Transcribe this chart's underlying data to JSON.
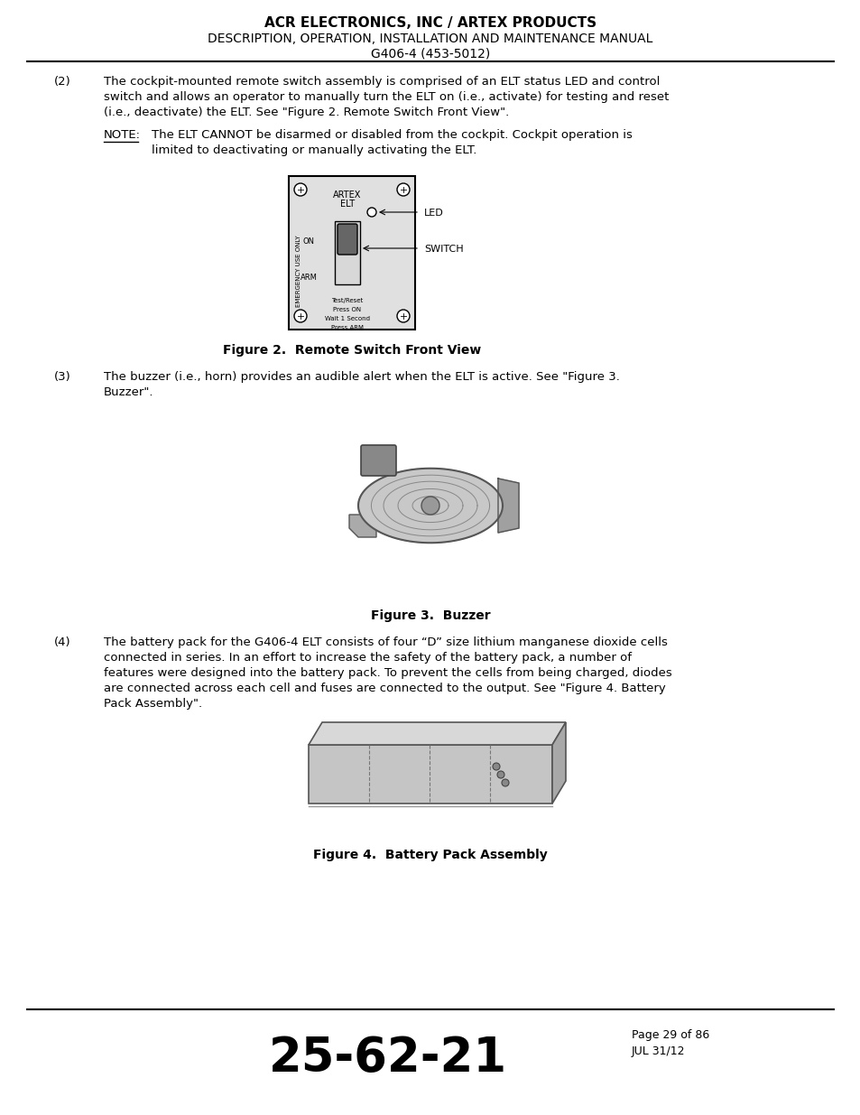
{
  "header_line1": "ACR ELECTRONICS, INC / ARTEX PRODUCTS",
  "header_line2": "DESCRIPTION, OPERATION, INSTALLATION AND MAINTENANCE MANUAL",
  "header_line3": "G406-4 (453-5012)",
  "footer_number": "25-62-21",
  "footer_page": "Page 29 of 86",
  "footer_date": "JUL 31/12",
  "para2_label": "(2)",
  "para2_text": "The cockpit-mounted remote switch assembly is comprised of an ELT status LED and control\nswitch and allows an operator to manually turn the ELT on (i.e., activate) for testing and reset\n(i.e., deactivate) the ELT. See \"Figure 2. Remote Switch Front View\".",
  "note_label": "NOTE:",
  "note_text": "The ELT CANNOT be disarmed or disabled from the cockpit. Cockpit operation is\nlimited to deactivating or manually activating the ELT.",
  "fig2_caption": "Figure 2.  Remote Switch Front View",
  "para3_label": "(3)",
  "para3_text": "The buzzer (i.e., horn) provides an audible alert when the ELT is active. See \"Figure 3.\nBuzzer\".",
  "fig3_caption": "Figure 3.  Buzzer",
  "para4_label": "(4)",
  "para4_text": "The battery pack for the G406-4 ELT consists of four “D” size lithium manganese dioxide cells\nconnected in series. In an effort to increase the safety of the battery pack, a number of\nfeatures were designed into the battery pack. To prevent the cells from being charged, diodes\nare connected across each cell and fuses are connected to the output. See \"Figure 4. Battery\nPack Assembly\".",
  "fig4_caption": "Figure 4.  Battery Pack Assembly",
  "bg_color": "#ffffff",
  "text_color": "#000000"
}
